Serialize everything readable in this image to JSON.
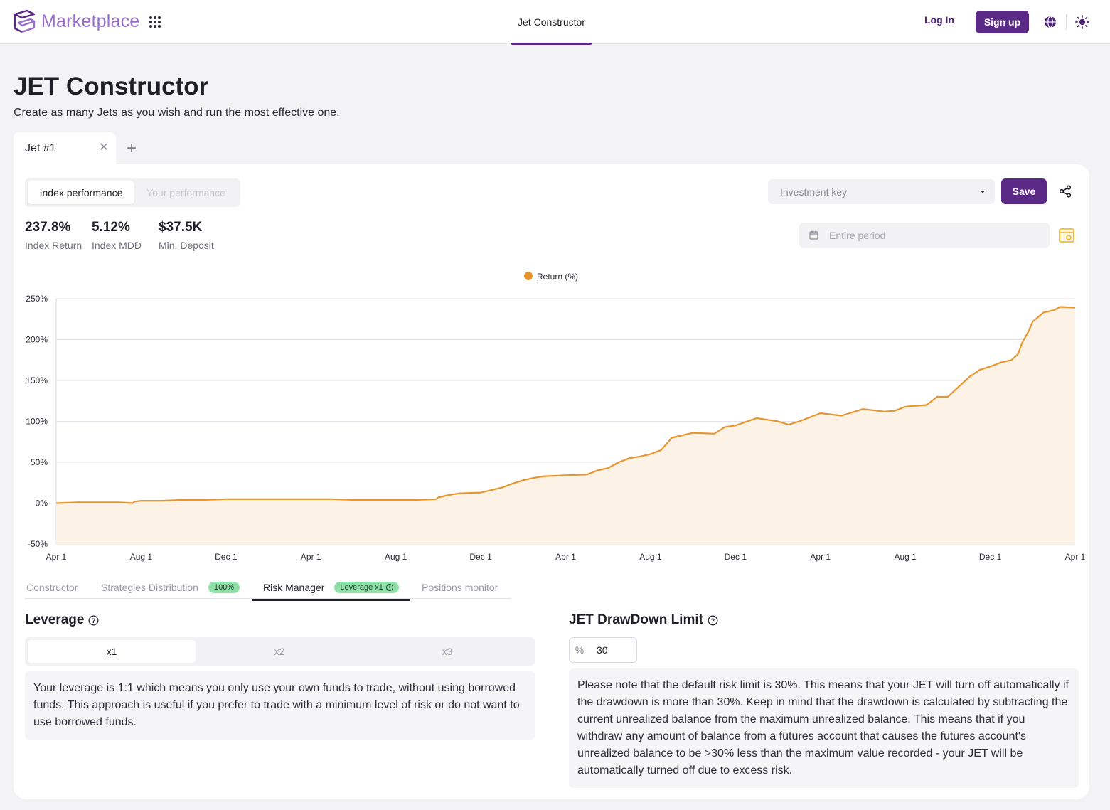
{
  "header": {
    "brand": "Marketplace",
    "nav_center": "Jet Constructor",
    "login": "Log In",
    "signup": "Sign up"
  },
  "page": {
    "title": "JET Constructor",
    "subtitle": "Create as many Jets as you wish and run the most effective one."
  },
  "jet_tabs": [
    {
      "label": "Jet #1"
    }
  ],
  "performance_toggle": {
    "options": [
      "Index performance",
      "Your performance"
    ],
    "selected": "Index performance"
  },
  "stats": [
    {
      "value": "237.8%",
      "label": "Index Return"
    },
    {
      "value": "5.12%",
      "label": "Index MDD"
    },
    {
      "value": "$37.5K",
      "label": "Min. Deposit"
    }
  ],
  "investment_key": {
    "placeholder": "Investment key"
  },
  "save_label": "Save",
  "period": {
    "placeholder": "Entire period"
  },
  "chart_data": {
    "type": "area",
    "series": [
      {
        "name": "Return (%)",
        "color": "#e8952e"
      }
    ],
    "y_ticks": [
      "250%",
      "200%",
      "150%",
      "100%",
      "50%",
      "0%",
      "-50%"
    ],
    "ylim": [
      -50,
      250
    ],
    "x_ticks": [
      "Apr 1",
      "Aug 1",
      "Dec 1",
      "Apr 1",
      "Aug 1",
      "Dec 1",
      "Apr 1",
      "Aug 1",
      "Dec 1",
      "Apr 1",
      "Aug 1",
      "Dec 1",
      "Apr 1"
    ],
    "grid": true,
    "legend": "top-center",
    "points": [
      [
        0,
        0
      ],
      [
        1,
        1
      ],
      [
        2,
        1
      ],
      [
        3,
        1
      ],
      [
        3.6,
        0
      ],
      [
        3.7,
        2
      ],
      [
        4,
        3
      ],
      [
        5,
        3
      ],
      [
        6,
        4
      ],
      [
        7,
        4
      ],
      [
        8,
        5
      ],
      [
        9,
        5
      ],
      [
        10,
        5
      ],
      [
        11,
        5
      ],
      [
        12,
        5
      ],
      [
        13,
        5
      ],
      [
        14,
        4
      ],
      [
        15,
        4
      ],
      [
        16,
        4
      ],
      [
        17,
        4
      ],
      [
        17.9,
        5
      ],
      [
        18,
        7
      ],
      [
        18.5,
        10
      ],
      [
        19,
        12
      ],
      [
        20,
        13
      ],
      [
        20.5,
        16
      ],
      [
        21,
        19
      ],
      [
        21.5,
        24
      ],
      [
        22,
        28
      ],
      [
        22.5,
        31
      ],
      [
        23,
        33
      ],
      [
        24,
        34
      ],
      [
        25,
        35
      ],
      [
        25.5,
        40
      ],
      [
        26,
        43
      ],
      [
        26.5,
        50
      ],
      [
        27,
        55
      ],
      [
        27.5,
        57
      ],
      [
        28,
        60
      ],
      [
        28.5,
        65
      ],
      [
        29,
        80
      ],
      [
        30,
        86
      ],
      [
        31,
        85
      ],
      [
        31.5,
        93
      ],
      [
        32,
        95
      ],
      [
        33,
        104
      ],
      [
        34,
        100
      ],
      [
        34.5,
        96
      ],
      [
        35,
        100
      ],
      [
        36,
        110
      ],
      [
        37,
        107
      ],
      [
        38,
        115
      ],
      [
        39,
        112
      ],
      [
        39.5,
        113
      ],
      [
        40,
        118
      ],
      [
        41,
        120
      ],
      [
        41.5,
        130
      ],
      [
        42,
        130
      ],
      [
        42.5,
        142
      ],
      [
        43,
        154
      ],
      [
        43.5,
        163
      ],
      [
        44,
        167
      ],
      [
        44.5,
        172
      ],
      [
        45,
        175
      ],
      [
        45.3,
        182
      ],
      [
        45.5,
        196
      ],
      [
        45.8,
        210
      ],
      [
        46,
        222
      ],
      [
        46.5,
        233
      ],
      [
        47,
        236
      ],
      [
        47.3,
        240
      ],
      [
        48,
        239
      ]
    ]
  },
  "section_tabs": [
    {
      "label": "Constructor"
    },
    {
      "label": "Strategies Distribution",
      "badge": "100%"
    },
    {
      "label": "Risk Manager",
      "badge": "Leverage x1"
    },
    {
      "label": "Positions monitor"
    }
  ],
  "leverage": {
    "title": "Leverage",
    "options": [
      "x1",
      "x2",
      "x3"
    ],
    "selected": "x1",
    "description": "Your leverage is 1:1 which means you only use your own funds to trade, without using borrowed funds. This approach is useful if you prefer to trade with a minimum level of risk or do not want to use borrowed funds."
  },
  "drawdown": {
    "title": "JET DrawDown Limit",
    "unit": "%",
    "value": "30",
    "description": "Please note that the default risk limit is 30%. This means that your JET will turn off automatically if the drawdown is more than 30%. Keep in mind that the drawdown is calculated by subtracting the current unrealized balance from the maximum unrealized balance. This means that if you withdraw any amount of balance from a futures account that causes the futures account's unrealized balance to be >30% less than the maximum value recorded - your JET will be automatically turned off due to excess risk."
  }
}
